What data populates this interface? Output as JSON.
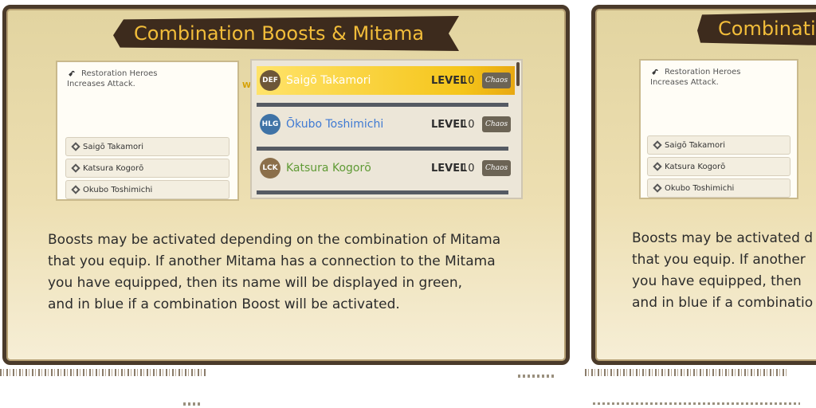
{
  "main_panel": {
    "title": "Combination Boosts & Mitama",
    "boost": {
      "icon": "swirl-icon",
      "name": "Restoration Heroes",
      "description": "Increases Attack."
    },
    "members": [
      "Saigō Takamori",
      "Katsura Kogorō",
      "Ōkubo Toshimichi"
    ],
    "cursor_label": "W",
    "cursor_sub": "E",
    "mitama_rows": [
      {
        "badge": "DEF",
        "name": "Saigō Takamori",
        "level_label": "LEVEL",
        "level": "10",
        "type": "Chaos",
        "selected": true,
        "name_color": "#ffffff"
      },
      {
        "badge": "HLG",
        "name": "Ōkubo Toshimichi",
        "level_label": "LEVEL",
        "level": "10",
        "type": "Chaos",
        "selected": false,
        "name_color": "#3f7ad3"
      },
      {
        "badge": "LCK",
        "name": "Katsura Kogorō",
        "level_label": "LEVEL",
        "level": "10",
        "type": "Chaos",
        "selected": false,
        "name_color": "#5f9a35"
      }
    ],
    "help_lines": [
      "Boosts may be activated depending on the combination of Mitama",
      "that you equip. If another Mitama has a connection to the Mitama",
      "you have equipped, then its name will be displayed in green,",
      "and in blue if a combination Boost will be activated."
    ]
  },
  "side_panel": {
    "title": "Combinati",
    "boost": {
      "name": "Restoration Heroes",
      "description": "Increases Attack."
    },
    "members": [
      "Saigō Takamori",
      "Katsura Kogorō",
      "Ōkubo Toshimichi"
    ],
    "help_lines": [
      "Boosts may be activated d",
      "that you equip. If another",
      "you have equipped, then",
      "and in blue if a combinatio"
    ]
  },
  "colors": {
    "panel_bg": "#eddfb2",
    "banner_bg": "#3d2b1d",
    "banner_text": "#f2bd3a",
    "selected_row": "#f5c51a",
    "blue_name": "#3f7ad3",
    "green_name": "#5f9a35"
  }
}
